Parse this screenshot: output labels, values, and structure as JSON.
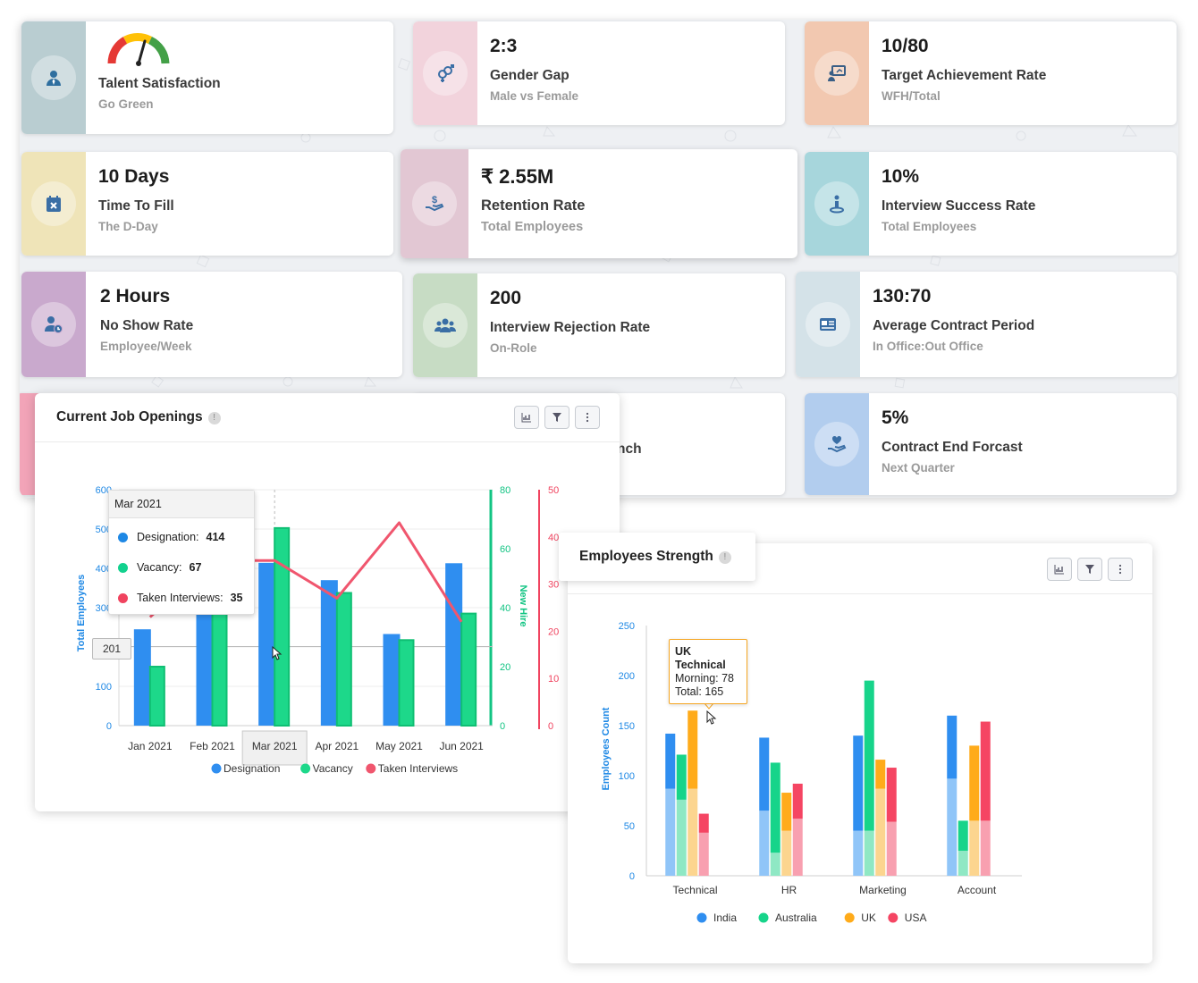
{
  "kpis": [
    {
      "id": "talent",
      "value": "",
      "label": "Talent Satisfaction",
      "sub": "Go Green",
      "icon": "person-tie-icon",
      "color": "#b9cdd1"
    },
    {
      "id": "gender",
      "value": "2:3",
      "label": "Gender Gap",
      "sub": "Male vs Female",
      "icon": "gender-icon",
      "color": "#f2d3dc"
    },
    {
      "id": "target",
      "value": "10/80",
      "label": "Target Achievement Rate",
      "sub": "WFH/Total",
      "icon": "presentation-icon",
      "color": "#f2c8b0"
    },
    {
      "id": "ttf",
      "value": "10 Days",
      "label": "Time To Fill",
      "sub": "The D-Day",
      "icon": "calendar-x-icon",
      "color": "#efe4b8"
    },
    {
      "id": "retention",
      "value": "₹ 2.55M",
      "label": "Retention Rate",
      "sub": "Total Employees",
      "icon": "hand-money-icon",
      "color": "#e2c7d3"
    },
    {
      "id": "interview",
      "value": "10%",
      "label": "Interview Success Rate",
      "sub": "Total Employees",
      "icon": "person-pin-icon",
      "color": "#a7d6dc"
    },
    {
      "id": "noshow",
      "value": "2 Hours",
      "label": "No Show Rate",
      "sub": "Employee/Week",
      "icon": "user-clock-icon",
      "color": "#c9a9cd"
    },
    {
      "id": "rejection",
      "value": "200",
      "label": "Interview Rejection Rate",
      "sub": "On-Role",
      "icon": "users-icon",
      "color": "#c7dcc4"
    },
    {
      "id": "contract",
      "value": "130:70",
      "label": "Average Contract Period",
      "sub": "In Office:Out Office",
      "icon": "id-card-icon",
      "color": "#d4e2e8"
    },
    {
      "id": "partial",
      "value": "",
      "label": "nch",
      "sub": "",
      "icon": "",
      "color": "#f2a4b8"
    },
    {
      "id": "contractend",
      "value": "5%",
      "label": "Contract End Forcast",
      "sub": "Next Quarter",
      "icon": "hand-heart-icon",
      "color": "#b2cdee"
    }
  ],
  "job_card": {
    "title": "Current Job Openings",
    "info": "!",
    "tools": [
      "chart-icon",
      "filter-icon",
      "more-icon"
    ]
  },
  "job_tooltip": {
    "title": "Mar 2021",
    "rows": [
      {
        "label": "Designation:",
        "value": "414",
        "color": "#1e88e5"
      },
      {
        "label": "Vacancy:",
        "value": "67",
        "color": "#12d18e"
      },
      {
        "label": "Taken Interviews:",
        "value": "35",
        "color": "#f0435f"
      }
    ],
    "crosshair_label": "201"
  },
  "strength_card": {
    "title": "Employees Strength",
    "info": "!",
    "tools": [
      "chart-icon",
      "filter-icon",
      "more-icon"
    ]
  },
  "strength_tooltip": {
    "country": "UK",
    "dept": "Technical",
    "line1": "Morning: 78",
    "line2": "Total: 165"
  },
  "gauge_colors": [
    "#e53935",
    "#ffc107",
    "#43a047"
  ],
  "chart_data": [
    {
      "type": "bar",
      "title": "Current Job Openings",
      "categories": [
        "Jan 2021",
        "Feb 2021",
        "Mar 2021",
        "Apr 2021",
        "May 2021",
        "Jun 2021"
      ],
      "series": [
        {
          "name": "Designation",
          "kind": "bar",
          "axis": "Total Employees",
          "values": [
            245,
            310,
            414,
            370,
            233,
            413
          ],
          "color": "#2f8ef0"
        },
        {
          "name": "Vacancy",
          "kind": "bar",
          "axis": "New Hire",
          "values": [
            20,
            50,
            67,
            45,
            29,
            38
          ],
          "color": "#1dd88a"
        },
        {
          "name": "Taken Interviews",
          "kind": "line",
          "axis": "secondary",
          "values": [
            23,
            35,
            35,
            27,
            43,
            22
          ],
          "color": "#f0566e"
        }
      ],
      "yaxes": [
        {
          "label": "Total Employees",
          "ticks": [
            0,
            100,
            200,
            300,
            400,
            500,
            600
          ],
          "range": [
            0,
            600
          ],
          "color": "#1e88e5"
        },
        {
          "label": "New Hire",
          "ticks": [
            0,
            20,
            40,
            60,
            80
          ],
          "range": [
            0,
            80
          ],
          "color": "#12c483"
        },
        {
          "label": "",
          "ticks": [
            0,
            10,
            20,
            30,
            40,
            50
          ],
          "range": [
            0,
            50
          ],
          "color": "#f0435f"
        }
      ],
      "legend": "bottom"
    },
    {
      "type": "bar",
      "title": "Employees Strength",
      "categories": [
        "Technical",
        "HR",
        "Marketing",
        "Account"
      ],
      "series": [
        {
          "name": "India",
          "total": [
            142,
            138,
            140,
            160
          ],
          "base": [
            87,
            65,
            45,
            97
          ],
          "color": "#2f8ef0",
          "light": "#90c5f8"
        },
        {
          "name": "Australia",
          "total": [
            121,
            113,
            195,
            55
          ],
          "base": [
            76,
            23,
            45,
            25
          ],
          "color": "#17d48a",
          "light": "#8fe8c4"
        },
        {
          "name": "UK",
          "total": [
            165,
            83,
            116,
            130
          ],
          "base": [
            87,
            45,
            87,
            55
          ],
          "color": "#ffab1a",
          "light": "#fcd58f"
        },
        {
          "name": "USA",
          "total": [
            62,
            92,
            108,
            154
          ],
          "base": [
            43,
            57,
            54,
            55
          ],
          "color": "#f54563",
          "light": "#f8a0b0"
        }
      ],
      "ylabel": "Employees Count",
      "ylim": [
        0,
        250
      ],
      "yticks": [
        0,
        50,
        100,
        150,
        200,
        250
      ],
      "legend": "bottom"
    }
  ]
}
